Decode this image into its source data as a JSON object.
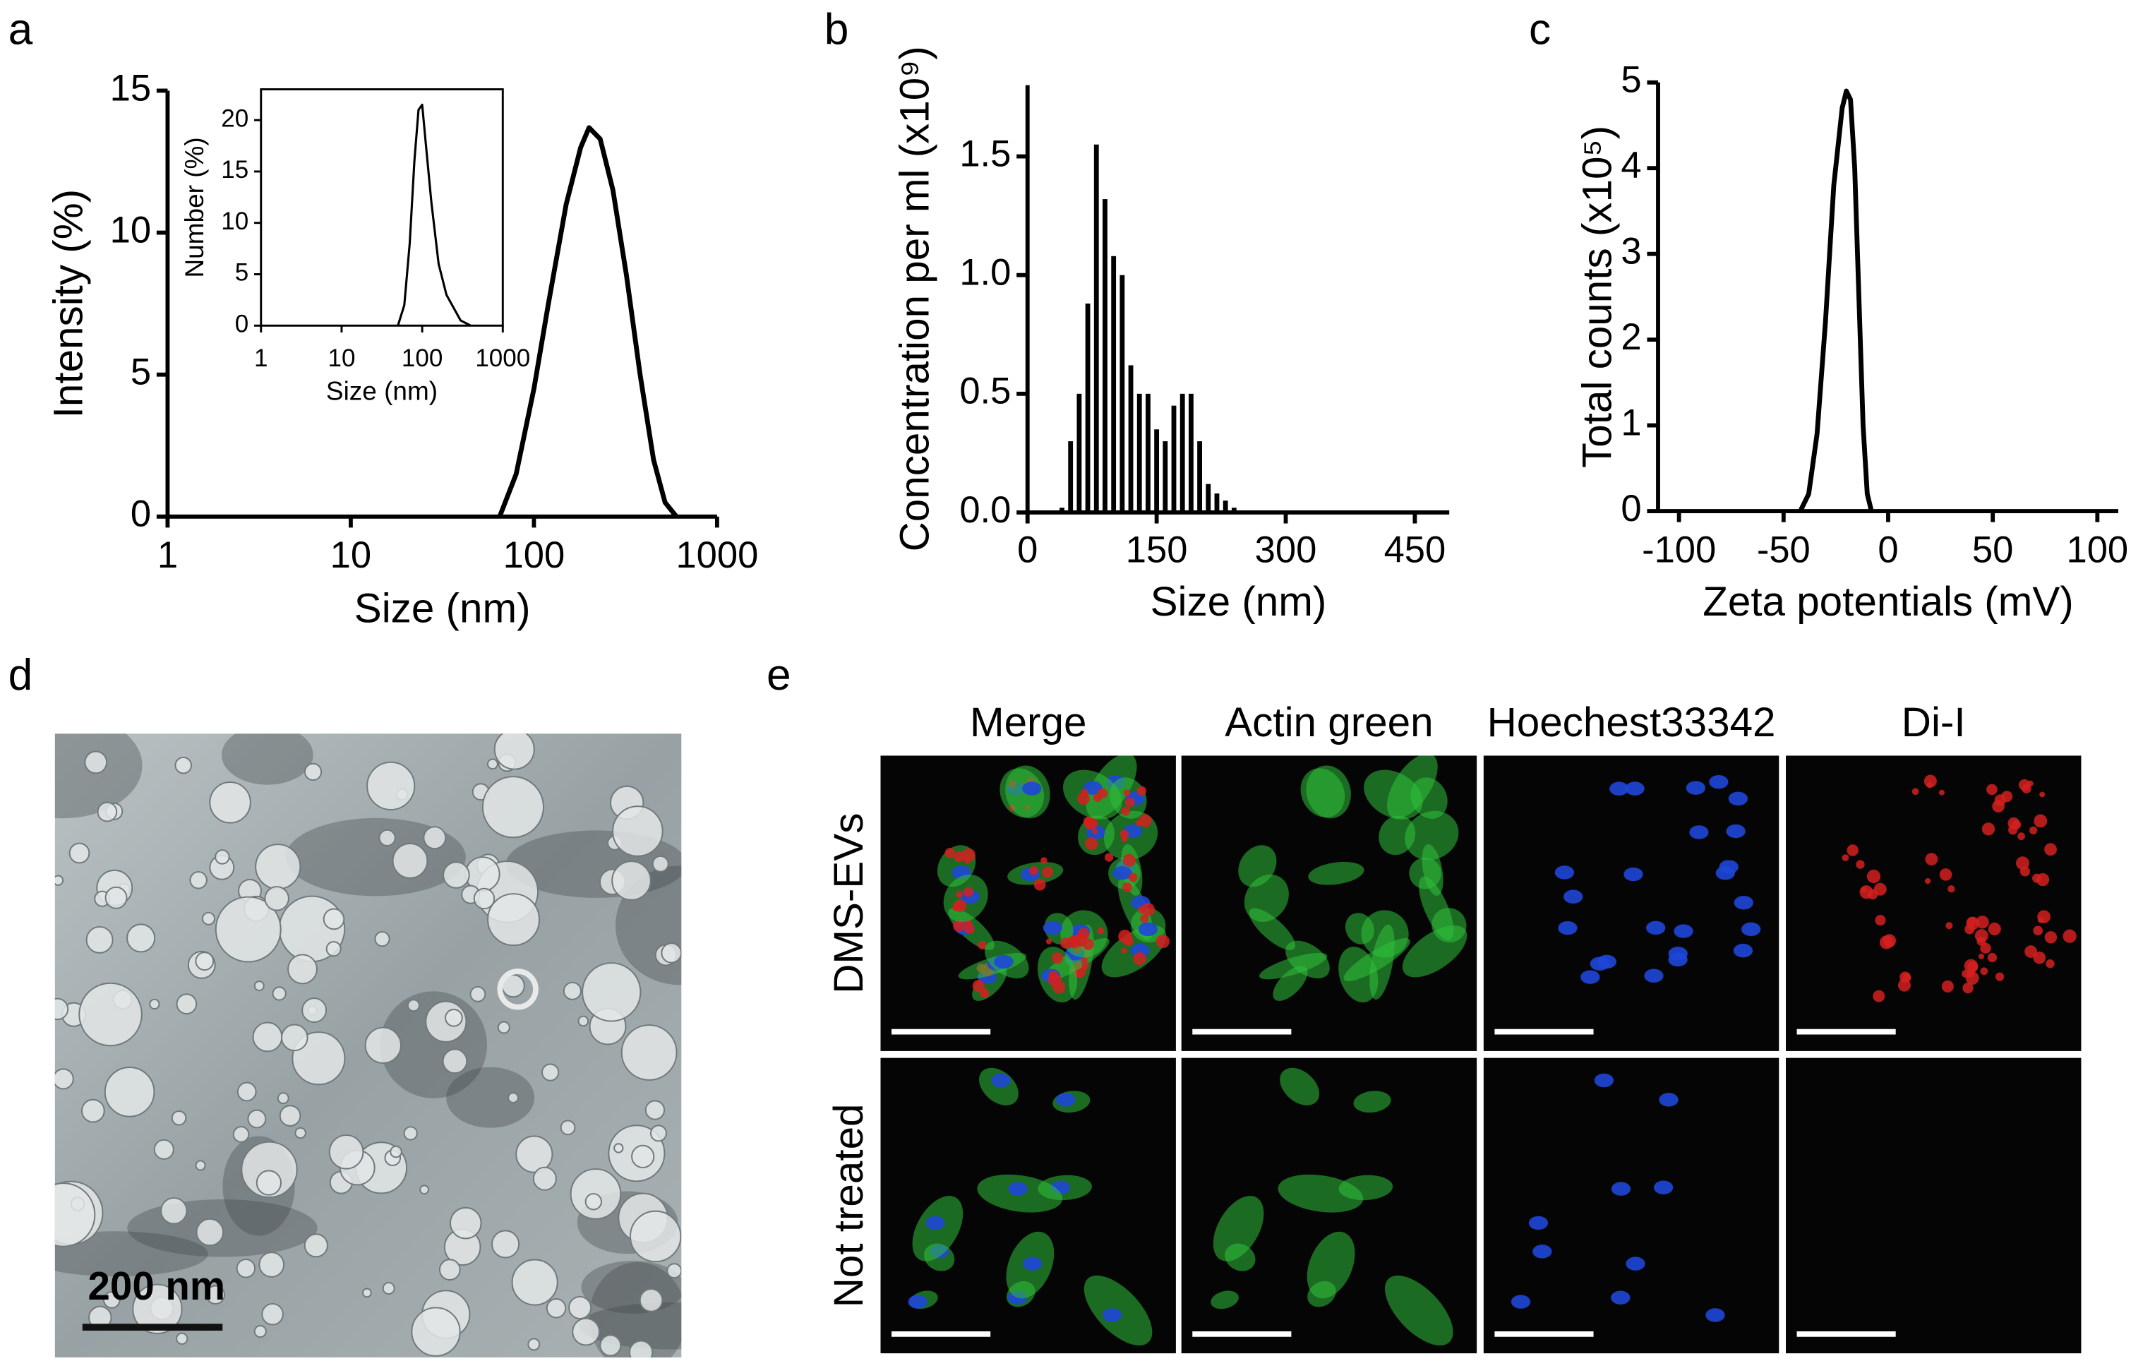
{
  "panel_labels": [
    "a",
    "b",
    "c",
    "d",
    "e"
  ],
  "chart_data": [
    {
      "type": "line",
      "log_x": true,
      "x_label": "Size (nm)",
      "y_label": "Intensity (%)",
      "xlim": [
        1,
        1000
      ],
      "ylim": [
        0,
        15
      ],
      "xticks": [
        1,
        10,
        100,
        1000
      ],
      "yticks": [
        0,
        5,
        10,
        15
      ],
      "x": [
        65,
        80,
        100,
        120,
        150,
        180,
        200,
        230,
        270,
        320,
        380,
        450,
        520,
        600
      ],
      "values": [
        0,
        1.5,
        4.5,
        7.5,
        11,
        13,
        13.7,
        13.3,
        11.5,
        8.5,
        5,
        2,
        0.5,
        0
      ],
      "color": "#000000"
    },
    {
      "type": "line",
      "log_x": true,
      "frame": true,
      "x_label": "Size (nm)",
      "y_label": "Number (%)",
      "xlim": [
        1,
        1000
      ],
      "ylim": [
        0,
        23
      ],
      "xticks": [
        1,
        10,
        100,
        1000
      ],
      "yticks": [
        0,
        5,
        10,
        15,
        20
      ],
      "x": [
        50,
        60,
        70,
        80,
        90,
        100,
        110,
        130,
        160,
        200,
        300,
        400
      ],
      "values": [
        0,
        2,
        8,
        16,
        21,
        21.5,
        18,
        12,
        6,
        3,
        0.5,
        0
      ],
      "color": "#000000"
    },
    {
      "type": "histogram",
      "x_label": "Size (nm)",
      "y_label": "Concentration per ml (x10⁹)",
      "xlim": [
        0,
        490
      ],
      "ylim": [
        0,
        1.8
      ],
      "xticks": [
        0,
        150,
        300,
        450
      ],
      "yticks": [
        {
          "value": 0,
          "label": "0.0"
        },
        0.5,
        {
          "value": 1,
          "label": "1.0"
        },
        1.5
      ],
      "bins": [
        35,
        45,
        55,
        65,
        75,
        85,
        95,
        105,
        115,
        125,
        135,
        145,
        155,
        165,
        175,
        185,
        195,
        205,
        215,
        225,
        235,
        245
      ],
      "values": [
        0.02,
        0.3,
        0.5,
        0.88,
        1.55,
        1.32,
        1.08,
        1.0,
        0.62,
        0.5,
        0.5,
        0.35,
        0.3,
        0.45,
        0.5,
        0.5,
        0.3,
        0.12,
        0.08,
        0.05,
        0.02
      ],
      "color": "#000000"
    },
    {
      "type": "line",
      "x_label": "Zeta potentials (mV)",
      "y_label": "Total counts (x10⁵)",
      "xlim": [
        -110,
        110
      ],
      "ylim": [
        0,
        5
      ],
      "xticks": [
        -100,
        -50,
        0,
        50,
        100
      ],
      "yticks": [
        0,
        1,
        2,
        3,
        4,
        5
      ],
      "x": [
        -42,
        -38,
        -34,
        -30,
        -26,
        -22,
        -20,
        -18,
        -16,
        -14,
        -12,
        -10,
        -8
      ],
      "values": [
        0,
        0.2,
        0.9,
        2.2,
        3.8,
        4.7,
        4.9,
        4.8,
        4.0,
        2.5,
        1.0,
        0.2,
        0
      ],
      "color": "#000000"
    }
  ],
  "tem_image": {
    "scale_bar": "200 nm"
  },
  "fluorescence": {
    "columns": [
      {
        "label": "Merge",
        "color": "#333333"
      },
      {
        "label": "Actin green",
        "color": "#1aa84a"
      },
      {
        "label": "Hoechest33342",
        "color": "#1a6fc4"
      },
      {
        "label": "Di-I",
        "color": "#e8231f"
      }
    ],
    "rows": [
      "DMS-EVs",
      "Not treated"
    ]
  }
}
